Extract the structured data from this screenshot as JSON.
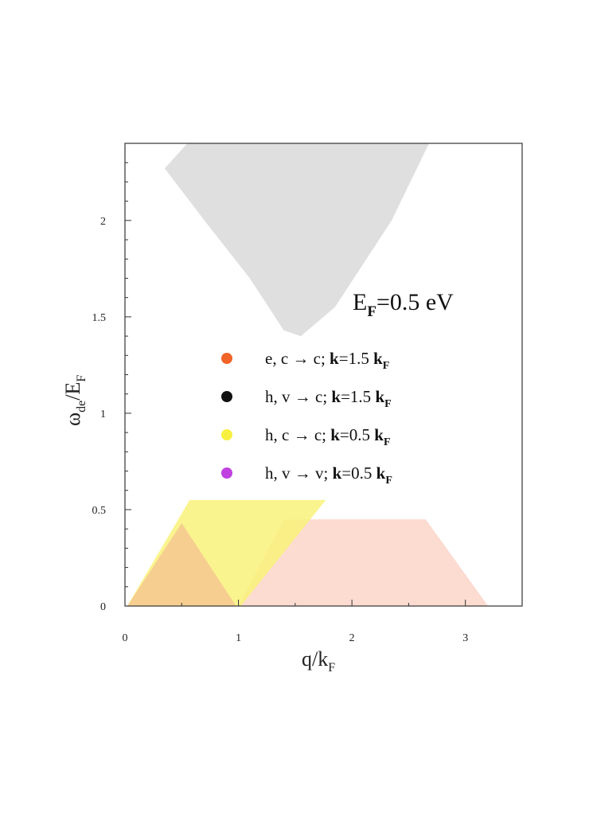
{
  "chart_data": {
    "type": "area",
    "xlabel_main": "q/k",
    "xlabel_sub": "F",
    "ylabel_main": "ω",
    "ylabel_sub": "de",
    "ylabel_rest": "/E",
    "ylabel_sub2": "F",
    "xlim": [
      0,
      3.5
    ],
    "ylim": [
      0,
      2.4
    ],
    "x_ticks": [
      0,
      1,
      2,
      3
    ],
    "x_tick_labels": [
      "0",
      "1",
      "2",
      "3"
    ],
    "y_ticks": [
      0,
      0.5,
      1,
      1.5,
      2
    ],
    "y_tick_labels": [
      "0",
      "0.5",
      "1",
      "1.5",
      "2"
    ],
    "annotation": {
      "main": "E",
      "sub": "F",
      "rest": "=0.5 eV"
    },
    "series": [
      {
        "name": "e, c → c; k=1.5 k",
        "name_sub": "F",
        "label_parts": [
          "e, c → c; ",
          "k",
          "=1.5 ",
          "k",
          "F"
        ],
        "color": "#f06428",
        "fill": "#fbd5c8",
        "polygon": [
          [
            1.0,
            0.0
          ],
          [
            1.4,
            0.45
          ],
          [
            2.65,
            0.45
          ],
          [
            3.2,
            0.0
          ]
        ]
      },
      {
        "name": "h, v → c; k=1.5 k",
        "name_sub": "F",
        "label_parts": [
          "h, v → c; ",
          "k",
          "=1.5 ",
          "k",
          "F"
        ],
        "color": "#111111",
        "fill": "#d9d9d9",
        "polygon": [
          [
            0.35,
            2.27
          ],
          [
            0.55,
            2.4
          ],
          [
            2.68,
            2.4
          ],
          [
            2.35,
            2.0
          ],
          [
            1.85,
            1.55
          ],
          [
            1.55,
            1.4
          ],
          [
            1.4,
            1.43
          ],
          [
            1.1,
            1.7
          ],
          [
            0.7,
            2.0
          ]
        ]
      },
      {
        "name": "h, c → c; k=0.5 k",
        "name_sub": "F",
        "label_parts": [
          "h, c → c; ",
          "k",
          "=0.5 ",
          "k",
          "F"
        ],
        "color": "#f8f040",
        "fill": "#f9f27a",
        "polygon": [
          [
            0.02,
            0.0
          ],
          [
            0.57,
            0.55
          ],
          [
            1.77,
            0.55
          ],
          [
            1.02,
            0.0
          ]
        ]
      },
      {
        "name": "h, v → v; k=0.5 k",
        "name_sub": "F",
        "label_parts": [
          "h, v → v; ",
          "k",
          "=0.5 ",
          "k",
          "F"
        ],
        "color": "#c040e0",
        "fill": "#f5c890",
        "polygon": [
          [
            0.02,
            0.0
          ],
          [
            0.5,
            0.43
          ],
          [
            0.98,
            0.0
          ]
        ]
      }
    ]
  }
}
